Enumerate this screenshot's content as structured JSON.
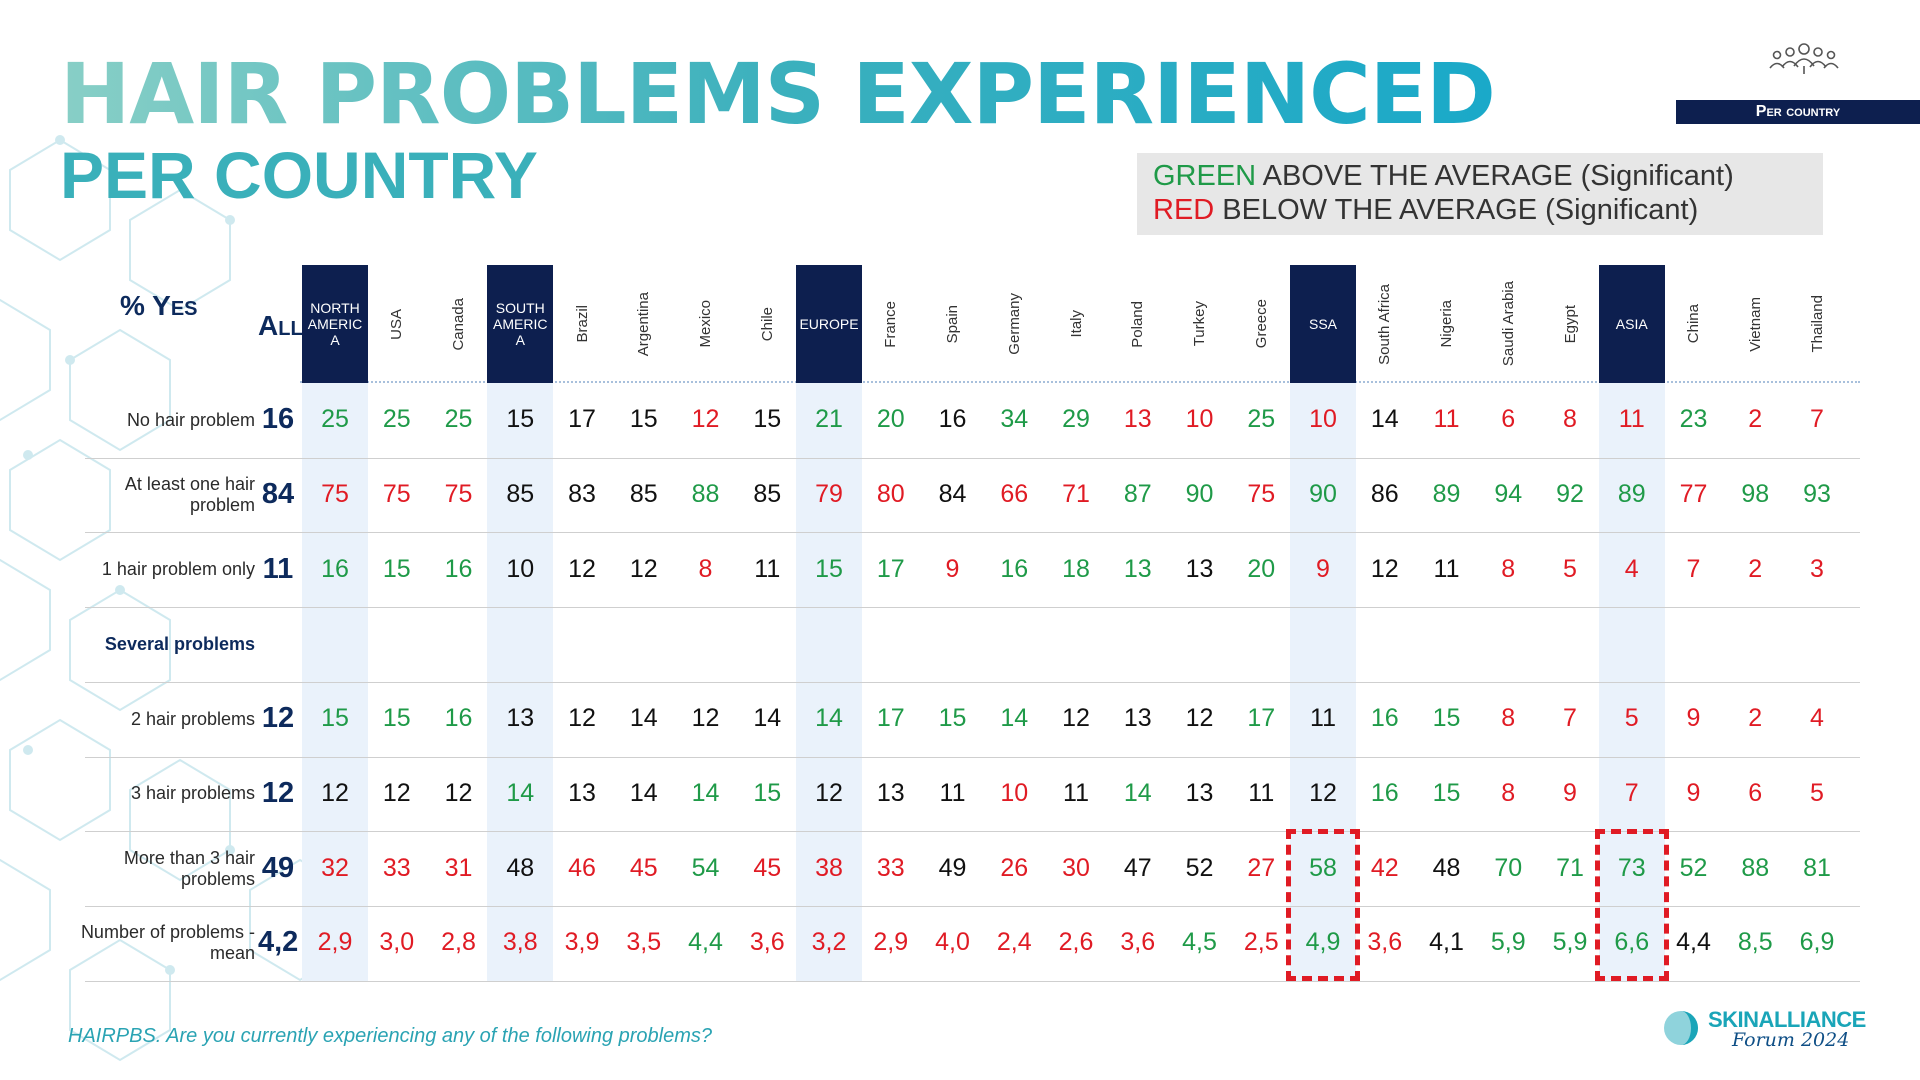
{
  "title": "HAIR PROBLEMS EXPERIENCED",
  "subtitle": "PER COUNTRY",
  "badge": "Per country",
  "legend": {
    "green_word": "GREEN",
    "green_text": " ABOVE THE AVERAGE (Significant)",
    "red_word": "RED",
    "red_text": " BELOW THE AVERAGE (Significant)"
  },
  "colors": {
    "above": "#1f9a48",
    "below": "#e01b24",
    "neutral": "#111111",
    "region_header": "#0d1f4f",
    "region_shade": "#eaf2fb"
  },
  "footnote": "HAIRPBS. Are you currently experiencing any of the following problems?",
  "logo": {
    "name": "SKINALLIANCE",
    "forum": "Forum 2024"
  },
  "icons": {
    "people": "people-group-icon",
    "logo": "skinalliance-logo-icon"
  },
  "chart_data": {
    "type": "table",
    "corner_label": "% Yes",
    "all_label": "All",
    "highlight_color": "#e01b24",
    "highlighted_cells": [
      {
        "row": 6,
        "col": 16
      },
      {
        "row": 7,
        "col": 16
      },
      {
        "row": 6,
        "col": 21
      },
      {
        "row": 7,
        "col": 21
      }
    ],
    "columns": [
      {
        "label": "NORTH AMERIC A",
        "region": true
      },
      {
        "label": "USA",
        "region": false
      },
      {
        "label": "Canada",
        "region": false
      },
      {
        "label": "SOUTH AMERIC A",
        "region": true
      },
      {
        "label": "Brazil",
        "region": false
      },
      {
        "label": "Argentina",
        "region": false
      },
      {
        "label": "Mexico",
        "region": false
      },
      {
        "label": "Chile",
        "region": false
      },
      {
        "label": "EUROPE",
        "region": true
      },
      {
        "label": "France",
        "region": false
      },
      {
        "label": "Spain",
        "region": false
      },
      {
        "label": "Germany",
        "region": false
      },
      {
        "label": "Italy",
        "region": false
      },
      {
        "label": "Poland",
        "region": false
      },
      {
        "label": "Turkey",
        "region": false
      },
      {
        "label": "Greece",
        "region": false
      },
      {
        "label": "SSA",
        "region": true
      },
      {
        "label": "South Africa",
        "region": false
      },
      {
        "label": "Nigeria",
        "region": false
      },
      {
        "label": "Saudi Arabia",
        "region": false
      },
      {
        "label": "Egypt",
        "region": false
      },
      {
        "label": "ASIA",
        "region": true
      },
      {
        "label": "China",
        "region": false
      },
      {
        "label": "Vietnam",
        "region": false
      },
      {
        "label": "Thailand",
        "region": false
      }
    ],
    "rows": [
      {
        "label": "No hair problem",
        "all": "16",
        "values": [
          "25",
          "25",
          "25",
          "15",
          "17",
          "15",
          "12",
          "15",
          "21",
          "20",
          "16",
          "34",
          "29",
          "13",
          "10",
          "25",
          "10",
          "14",
          "11",
          "6",
          "8",
          "11",
          "23",
          "2",
          "7"
        ],
        "sig": [
          "g",
          "g",
          "g",
          "n",
          "n",
          "n",
          "r",
          "n",
          "g",
          "g",
          "n",
          "g",
          "g",
          "r",
          "r",
          "g",
          "r",
          "n",
          "r",
          "r",
          "r",
          "r",
          "g",
          "r",
          "r"
        ]
      },
      {
        "label": "At least one hair problem",
        "all": "84",
        "values": [
          "75",
          "75",
          "75",
          "85",
          "83",
          "85",
          "88",
          "85",
          "79",
          "80",
          "84",
          "66",
          "71",
          "87",
          "90",
          "75",
          "90",
          "86",
          "89",
          "94",
          "92",
          "89",
          "77",
          "98",
          "93"
        ],
        "sig": [
          "r",
          "r",
          "r",
          "n",
          "n",
          "n",
          "g",
          "n",
          "r",
          "r",
          "n",
          "r",
          "r",
          "g",
          "g",
          "r",
          "g",
          "n",
          "g",
          "g",
          "g",
          "g",
          "r",
          "g",
          "g"
        ]
      },
      {
        "label": "1 hair problem only",
        "all": "11",
        "values": [
          "16",
          "15",
          "16",
          "10",
          "12",
          "12",
          "8",
          "11",
          "15",
          "17",
          "9",
          "16",
          "18",
          "13",
          "13",
          "20",
          "9",
          "12",
          "11",
          "8",
          "5",
          "4",
          "7",
          "2",
          "3"
        ],
        "sig": [
          "g",
          "g",
          "g",
          "n",
          "n",
          "n",
          "r",
          "n",
          "g",
          "g",
          "r",
          "g",
          "g",
          "g",
          "n",
          "g",
          "r",
          "n",
          "n",
          "r",
          "r",
          "r",
          "r",
          "r",
          "r"
        ]
      },
      {
        "label": "Several problems",
        "all": "",
        "section": true,
        "values": [],
        "sig": []
      },
      {
        "label": "2 hair problems",
        "all": "12",
        "values": [
          "15",
          "15",
          "16",
          "13",
          "12",
          "14",
          "12",
          "14",
          "14",
          "17",
          "15",
          "14",
          "12",
          "13",
          "12",
          "17",
          "11",
          "16",
          "15",
          "8",
          "7",
          "5",
          "9",
          "2",
          "4"
        ],
        "sig": [
          "g",
          "g",
          "g",
          "n",
          "n",
          "n",
          "n",
          "n",
          "g",
          "g",
          "g",
          "g",
          "n",
          "n",
          "n",
          "g",
          "n",
          "g",
          "g",
          "r",
          "r",
          "r",
          "r",
          "r",
          "r"
        ]
      },
      {
        "label": "3 hair problems",
        "all": "12",
        "values": [
          "12",
          "12",
          "12",
          "14",
          "13",
          "14",
          "14",
          "15",
          "12",
          "13",
          "11",
          "10",
          "11",
          "14",
          "13",
          "11",
          "12",
          "16",
          "15",
          "8",
          "9",
          "7",
          "9",
          "6",
          "5"
        ],
        "sig": [
          "n",
          "n",
          "n",
          "g",
          "n",
          "n",
          "g",
          "g",
          "n",
          "n",
          "n",
          "r",
          "n",
          "g",
          "n",
          "n",
          "n",
          "g",
          "g",
          "r",
          "r",
          "r",
          "r",
          "r",
          "r"
        ]
      },
      {
        "label": "More than 3 hair problems",
        "all": "49",
        "values": [
          "32",
          "33",
          "31",
          "48",
          "46",
          "45",
          "54",
          "45",
          "38",
          "33",
          "49",
          "26",
          "30",
          "47",
          "52",
          "27",
          "58",
          "42",
          "48",
          "70",
          "71",
          "73",
          "52",
          "88",
          "81"
        ],
        "sig": [
          "r",
          "r",
          "r",
          "n",
          "r",
          "r",
          "g",
          "r",
          "r",
          "r",
          "n",
          "r",
          "r",
          "n",
          "n",
          "r",
          "g",
          "r",
          "n",
          "g",
          "g",
          "g",
          "g",
          "g",
          "g"
        ]
      },
      {
        "label": "Number of problems - mean",
        "all": "4,2",
        "values": [
          "2,9",
          "3,0",
          "2,8",
          "3,8",
          "3,9",
          "3,5",
          "4,4",
          "3,6",
          "3,2",
          "2,9",
          "4,0",
          "2,4",
          "2,6",
          "3,6",
          "4,5",
          "2,5",
          "4,9",
          "3,6",
          "4,1",
          "5,9",
          "5,9",
          "6,6",
          "4,4",
          "8,5",
          "6,9"
        ],
        "sig": [
          "r",
          "r",
          "r",
          "r",
          "r",
          "r",
          "g",
          "r",
          "r",
          "r",
          "r",
          "r",
          "r",
          "r",
          "g",
          "r",
          "g",
          "r",
          "n",
          "g",
          "g",
          "g",
          "n",
          "g",
          "g"
        ]
      }
    ]
  }
}
